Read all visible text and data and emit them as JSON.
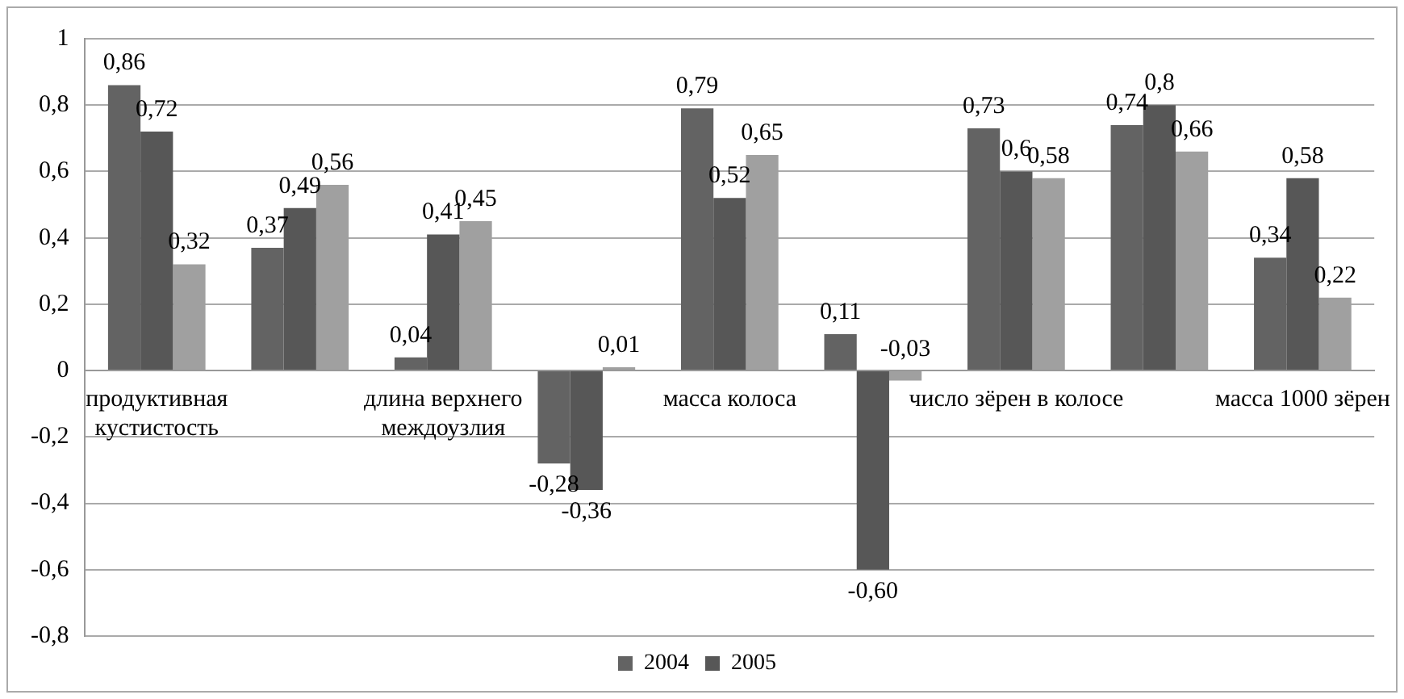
{
  "chart_data": {
    "type": "bar",
    "categories": [
      "продуктивная кустистость",
      null,
      "длина верхнего междоузлия",
      null,
      "масса колоса",
      null,
      "число зёрен в колосе",
      null,
      "масса 1000 зёрен"
    ],
    "series": [
      {
        "name": "2004",
        "color": "#636363",
        "values": [
          0.86,
          0.37,
          0.04,
          -0.28,
          0.79,
          0.11,
          0.73,
          0.74,
          0.34
        ],
        "value_labels": [
          "0,86",
          "0,37",
          "0,04",
          "-0,28",
          "0,79",
          "0,11",
          "0,73",
          "0,74",
          "0,34"
        ]
      },
      {
        "name": "2005",
        "color": "#575757",
        "values": [
          0.72,
          0.49,
          0.41,
          -0.36,
          0.52,
          -0.6,
          0.6,
          0.8,
          0.58
        ],
        "value_labels": [
          "0,72",
          "0,49",
          "0,41",
          "-0,36",
          "0,52",
          "-0,60",
          "0,6",
          "0,8",
          "0,58"
        ]
      },
      {
        "color": "#a0a0a0",
        "values": [
          0.32,
          0.56,
          0.45,
          0.01,
          0.65,
          -0.03,
          0.58,
          0.66,
          0.22
        ],
        "value_labels": [
          "0,32",
          "0,56",
          "0,45",
          "0,01",
          "0,65",
          "-0,03",
          "0,58",
          "0,66",
          "0,22"
        ]
      }
    ],
    "ylim": [
      -0.8,
      1
    ],
    "yticks": [
      {
        "value": -0.8,
        "label": "-0,8"
      },
      {
        "value": -0.6,
        "label": "-0,6"
      },
      {
        "value": -0.4,
        "label": "-0,4"
      },
      {
        "value": -0.2,
        "label": "-0,2"
      },
      0,
      {
        "value": 0.2,
        "label": "0,2"
      },
      {
        "value": 0.4,
        "label": "0,4"
      },
      {
        "value": 0.6,
        "label": "0,6"
      },
      {
        "value": 0.8,
        "label": "0,8"
      },
      1
    ],
    "grid": "y",
    "legend": "bottom"
  }
}
